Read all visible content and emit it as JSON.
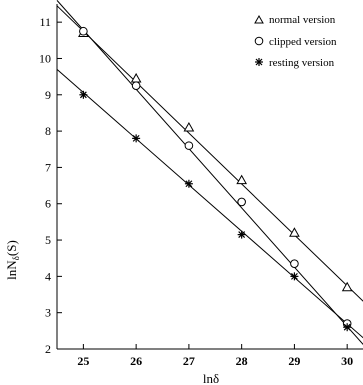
{
  "chart_data": {
    "type": "scatter",
    "xlabel": "lnδ",
    "ylabel": "lnN_δ(S)",
    "xlim": [
      24.5,
      30.3
    ],
    "ylim": [
      2,
      11.5
    ],
    "xticks": [
      25,
      26,
      27,
      28,
      29,
      30
    ],
    "yticks": [
      2,
      3,
      4,
      5,
      6,
      7,
      8,
      9,
      10,
      11
    ],
    "legend_position": "top-right",
    "grid": false,
    "series": [
      {
        "name": "normal version",
        "marker": "triangle",
        "x": [
          25,
          26,
          27,
          28,
          29,
          30
        ],
        "y": [
          10.7,
          9.45,
          8.1,
          6.65,
          5.2,
          3.7
        ],
        "fit": [
          [
            24.5,
            11.45
          ],
          [
            30.35,
            3.25
          ]
        ]
      },
      {
        "name": "clipped version",
        "marker": "circle",
        "x": [
          25,
          26,
          27,
          28,
          29,
          30
        ],
        "y": [
          10.75,
          9.25,
          7.6,
          6.05,
          4.35,
          2.7
        ],
        "fit": [
          [
            24.5,
            11.6
          ],
          [
            30.35,
            2.05
          ]
        ]
      },
      {
        "name": "resting version",
        "marker": "star",
        "x": [
          25,
          26,
          27,
          28,
          29,
          30
        ],
        "y": [
          9.0,
          7.8,
          6.55,
          5.15,
          4.0,
          2.6
        ],
        "fit": [
          [
            24.5,
            9.7
          ],
          [
            30.35,
            2.25
          ]
        ]
      }
    ]
  }
}
